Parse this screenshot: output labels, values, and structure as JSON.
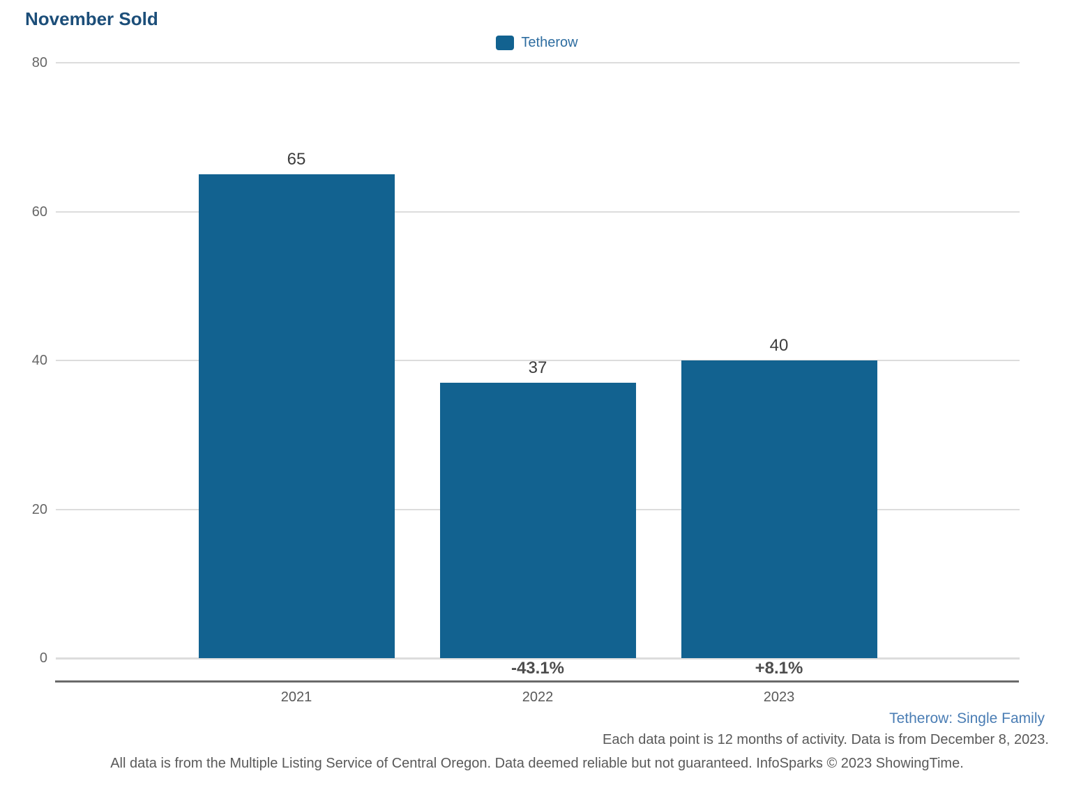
{
  "title": "November Sold",
  "legend": {
    "label": "Tetherow"
  },
  "chart_data": {
    "type": "bar",
    "title": "November Sold",
    "series_name": "Tetherow",
    "categories": [
      "2021",
      "2022",
      "2023"
    ],
    "values": [
      65,
      37,
      40
    ],
    "value_labels": [
      "65",
      "37",
      "40"
    ],
    "pct_change_labels": [
      "",
      "-43.1%",
      "+8.1%"
    ],
    "xlabel": "",
    "ylabel": "",
    "ylim": [
      0,
      80
    ],
    "yticks": [
      0,
      20,
      40,
      60,
      80
    ],
    "grid": true,
    "legend_position": "top-center",
    "bar_color": "#126290"
  },
  "footer": {
    "series_note": "Tetherow: Single Family",
    "data_note": "Each data point is 12 months of activity. Data is from December 8, 2023.",
    "disclaimer": "All data is from the Multiple Listing Service of Central Oregon. Data deemed reliable but not guaranteed. InfoSparks © 2023 ShowingTime."
  },
  "colors": {
    "bar": "#126290",
    "title_text": "#1c4e79",
    "legend_text": "#2e6da0",
    "link_text": "#4a7db4",
    "tick_text": "#666666",
    "value_text": "#3d3d3d",
    "pct_text": "#4d4d4d",
    "grid_line": "#dcdcdc",
    "axis_line": "#6a6a6a"
  }
}
